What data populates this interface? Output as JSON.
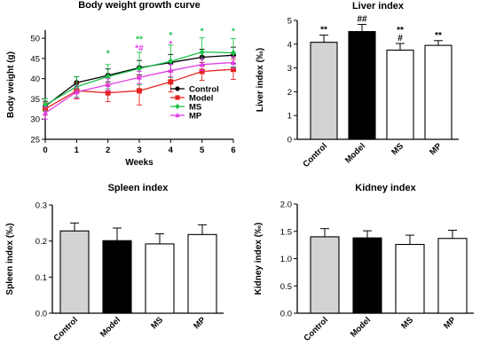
{
  "chart_data": [
    {
      "id": "bw",
      "type": "line",
      "title": "Body weight growth curve",
      "xlabel": "Weeks",
      "ylabel": "Body weight (g)",
      "xlim": [
        0,
        6
      ],
      "ylim": [
        25,
        52
      ],
      "xticks": [
        0,
        1,
        2,
        3,
        4,
        5,
        6
      ],
      "yticks": [
        25,
        30,
        35,
        40,
        45,
        50
      ],
      "x": [
        0,
        1,
        2,
        3,
        4,
        5,
        6
      ],
      "legend_position": "lower-right",
      "series": [
        {
          "name": "Control",
          "color": "#000000",
          "marker": "circle",
          "values": [
            33.2,
            39.0,
            40.8,
            42.7,
            44.0,
            45.3,
            45.8
          ],
          "err": [
            1.2,
            1.5,
            1.6,
            1.8,
            2.0,
            2.0,
            2.0
          ]
        },
        {
          "name": "Model",
          "color": "#e8231f",
          "marker": "square",
          "values": [
            32.5,
            37.0,
            36.5,
            37.0,
            39.2,
            41.8,
            42.3
          ],
          "err": [
            1.5,
            2.0,
            2.2,
            3.5,
            2.5,
            2.2,
            2.5
          ]
        },
        {
          "name": "MS",
          "color": "#19c34a",
          "marker": "diamond",
          "values": [
            33.5,
            38.0,
            40.5,
            42.5,
            44.3,
            46.6,
            46.4
          ],
          "err": [
            1.5,
            2.5,
            3.0,
            4.0,
            4.0,
            3.5,
            3.5
          ]
        },
        {
          "name": "MP",
          "color": "#e23ce6",
          "marker": "triangle",
          "values": [
            31.5,
            36.7,
            38.5,
            40.3,
            42.0,
            43.5,
            44.0
          ],
          "err": [
            1.5,
            1.5,
            1.5,
            1.5,
            1.5,
            1.5,
            1.5
          ]
        }
      ],
      "annotations": [
        {
          "x": 2,
          "y": 45.5,
          "text": "*",
          "color": "#19c34a"
        },
        {
          "x": 3,
          "y": 49.0,
          "text": "**",
          "color": "#19c34a"
        },
        {
          "x": 3,
          "y": 46.8,
          "text": "*#",
          "color": "#e23ce6"
        },
        {
          "x": 4,
          "y": 50.0,
          "text": "*",
          "color": "#19c34a"
        },
        {
          "x": 4,
          "y": 47.8,
          "text": "*",
          "color": "#e23ce6"
        },
        {
          "x": 5,
          "y": 51.0,
          "text": "*",
          "color": "#19c34a"
        },
        {
          "x": 6,
          "y": 51.0,
          "text": "*",
          "color": "#19c34a"
        }
      ]
    },
    {
      "id": "liver",
      "type": "bar",
      "title": "Liver index",
      "ylabel": "Liver index (‰)",
      "ylim": [
        0,
        5
      ],
      "yticks": [
        0,
        1,
        2,
        3,
        4,
        5
      ],
      "categories": [
        "Control",
        "Model",
        "MS",
        "MP"
      ],
      "values": [
        4.08,
        4.53,
        3.75,
        3.95
      ],
      "err": [
        0.3,
        0.3,
        0.28,
        0.2
      ],
      "fills": [
        "#d3d3d3",
        "#000000",
        "#ffffff",
        "#ffffff"
      ],
      "annotations": [
        {
          "index": 0,
          "lines": [
            "**"
          ]
        },
        {
          "index": 1,
          "lines": [
            "##"
          ]
        },
        {
          "index": 2,
          "lines": [
            "**",
            "#"
          ]
        },
        {
          "index": 3,
          "lines": [
            "**"
          ]
        }
      ]
    },
    {
      "id": "spleen",
      "type": "bar",
      "title": "Spleen index",
      "ylabel": "Spleen index (‰)",
      "ylim": [
        0,
        0.3
      ],
      "yticks": [
        0.0,
        0.1,
        0.2,
        0.3
      ],
      "yticklabels": [
        "0.0",
        "0.1",
        "0.2",
        "0.3"
      ],
      "categories": [
        "Control",
        "Model",
        "MS",
        "MP"
      ],
      "values": [
        0.228,
        0.201,
        0.192,
        0.218
      ],
      "err": [
        0.022,
        0.035,
        0.028,
        0.027
      ],
      "fills": [
        "#d3d3d3",
        "#000000",
        "#ffffff",
        "#ffffff"
      ],
      "annotations": []
    },
    {
      "id": "kidney",
      "type": "bar",
      "title": "Kidney index",
      "ylabel": "Kidney index (‰)",
      "ylim": [
        0,
        2.0
      ],
      "yticks": [
        0.0,
        0.5,
        1.0,
        1.5,
        2.0
      ],
      "yticklabels": [
        "0.0",
        "0.5",
        "1.0",
        "1.5",
        "2.0"
      ],
      "categories": [
        "Control",
        "Model",
        "MS",
        "MP"
      ],
      "values": [
        1.4,
        1.38,
        1.26,
        1.37
      ],
      "err": [
        0.15,
        0.13,
        0.17,
        0.15
      ],
      "fills": [
        "#d3d3d3",
        "#000000",
        "#ffffff",
        "#ffffff"
      ],
      "annotations": []
    }
  ]
}
